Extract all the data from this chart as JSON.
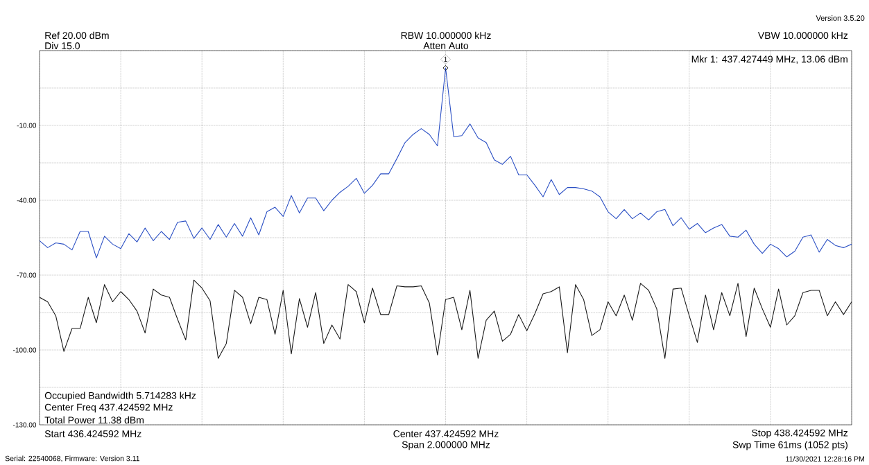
{
  "chart_data": {
    "type": "line",
    "title": "RBW 10.000000 kHz",
    "subtitle": "Atten Auto",
    "categories": [
      null,
      null,
      null,
      null,
      null,
      null,
      null,
      null,
      null,
      null,
      null,
      null,
      null,
      null,
      null,
      null,
      null,
      null,
      null,
      null,
      null,
      null,
      null,
      null,
      null,
      null,
      null,
      null,
      null,
      null,
      null,
      null,
      null,
      null,
      null,
      null,
      null,
      null,
      null,
      null,
      null,
      null,
      null,
      null,
      null,
      null,
      null,
      null,
      null,
      null,
      null,
      null,
      null,
      null,
      null,
      null,
      null,
      null,
      null,
      null,
      null,
      null,
      null,
      null,
      null,
      null,
      null,
      null,
      null,
      null,
      null,
      null,
      null,
      null,
      null,
      null,
      null,
      null,
      null,
      null,
      null,
      null,
      null,
      null,
      null,
      null,
      null,
      null,
      null,
      null,
      null,
      null,
      null,
      null,
      null,
      null,
      null,
      null,
      null,
      null,
      null
    ],
    "ylim": [
      -130,
      20
    ],
    "yticks": [
      {
        "value": -130,
        "label": "-130.00"
      },
      {
        "value": -115,
        "label": null
      },
      {
        "value": -100,
        "label": "-100.00"
      },
      {
        "value": -85,
        "label": null
      },
      {
        "value": -70,
        "label": "-70.00"
      },
      {
        "value": -55,
        "label": null
      },
      {
        "value": -40,
        "label": "-40.00"
      },
      {
        "value": -25,
        "label": null
      },
      {
        "value": -10,
        "label": "-10.00"
      },
      {
        "value": 5,
        "label": null
      },
      {
        "value": 20,
        "label": null
      }
    ],
    "grid": true,
    "series": [
      {
        "color": "#2a4fc4",
        "values": [
          -56.2,
          -59.0,
          -57.1,
          -57.6,
          -59.9,
          -52.5,
          -52.5,
          -63.1,
          -54.4,
          -57.6,
          -59.4,
          -53.4,
          -56.7,
          -51.1,
          -56.2,
          -52.5,
          -55.7,
          -48.8,
          -48.3,
          -55.3,
          -51.1,
          -55.7,
          -49.7,
          -54.8,
          -49.3,
          -54.4,
          -47.0,
          -53.9,
          -44.6,
          -42.8,
          -46.5,
          -38.1,
          -45.1,
          -39.1,
          -39.1,
          -44.2,
          -40.0,
          -36.8,
          -34.4,
          -31.2,
          -37.2,
          -34.0,
          -29.4,
          -29.4,
          -23.3,
          -16.9,
          -13.6,
          -11.3,
          -13.6,
          -18.2,
          13.06,
          -14.5,
          -14.1,
          -9.4,
          -15.0,
          -16.9,
          -23.8,
          -25.6,
          -22.4,
          -29.8,
          -29.8,
          -34.0,
          -38.6,
          -31.7,
          -37.7,
          -34.9,
          -34.9,
          -35.4,
          -36.3,
          -38.6,
          -44.6,
          -47.4,
          -43.7,
          -47.4,
          -45.1,
          -47.9,
          -44.6,
          -43.7,
          -50.2,
          -47.0,
          -51.6,
          -49.3,
          -53.0,
          -51.1,
          -49.7,
          -54.4,
          -54.8,
          -52.0,
          -57.6,
          -61.3,
          -57.6,
          -59.4,
          -62.7,
          -60.4,
          -54.8,
          -53.9,
          -60.8,
          -55.7,
          -58.1,
          -59.0,
          -57.6
        ]
      },
      {
        "color": "#1a1a1a",
        "values": [
          -78.9,
          -80.7,
          -86.3,
          -100.6,
          -91.4,
          -91.4,
          -78.9,
          -89.1,
          -73.8,
          -80.7,
          -76.6,
          -79.8,
          -84.4,
          -93.2,
          -75.6,
          -78.0,
          -78.9,
          -87.7,
          -96.0,
          -72.0,
          -75.2,
          -80.3,
          -103.4,
          -97.4,
          -76.1,
          -78.9,
          -89.5,
          -78.9,
          -79.8,
          -93.7,
          -76.1,
          -101.6,
          -79.4,
          -90.9,
          -77.0,
          -97.4,
          -90.0,
          -95.6,
          -73.8,
          -76.6,
          -89.1,
          -75.2,
          -85.8,
          -85.8,
          -74.3,
          -74.7,
          -74.7,
          -74.3,
          -81.2,
          -102.0,
          -79.8,
          -78.9,
          -91.9,
          -76.1,
          -103.4,
          -88.1,
          -84.4,
          -96.5,
          -93.7,
          -85.8,
          -92.3,
          -85.4,
          -77.5,
          -76.6,
          -74.7,
          -101.1,
          -73.8,
          -79.8,
          -94.2,
          -91.9,
          -80.7,
          -86.3,
          -78.0,
          -88.1,
          -73.3,
          -76.1,
          -83.5,
          -103.4,
          -75.6,
          -75.2,
          -86.3,
          -97.0,
          -78.0,
          -91.9,
          -77.0,
          -86.3,
          -73.3,
          -94.6,
          -75.2,
          -83.5,
          -90.9,
          -75.6,
          -90.0,
          -86.3,
          -77.0,
          -76.1,
          -76.1,
          -86.3,
          -80.7,
          -85.8,
          -80.7
        ]
      }
    ],
    "annotations": [
      "Ref 20.00 dBm",
      "Div 15.0",
      "VBW 10.000000 kHz",
      "Version 3.5.20",
      "Mkr 1: 437.427449 MHz, 13.06 dBm",
      "Occupied Bandwidth 5.714283 kHz",
      "Center Freq 437.424592 MHz",
      "Total Power 11.38 dBm",
      "Start 436.424592 MHz",
      "Center 437.424592 MHz",
      "Span 2.000000 MHz",
      "Stop 438.424592 MHz",
      "Swp Time 61ms (1052 pts)",
      "Serial: 22540068, Firmware: Version 3.11",
      "11/30/2021 12:28:16 PM",
      {
        "text": "1",
        "y": 13.06
      }
    ]
  }
}
